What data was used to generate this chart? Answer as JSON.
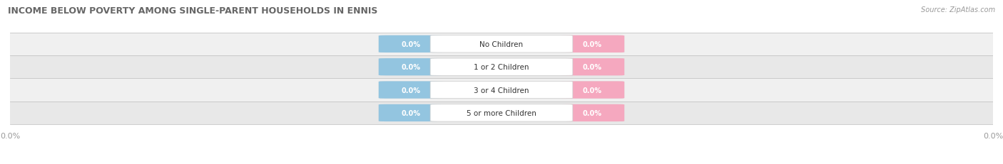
{
  "title": "INCOME BELOW POVERTY AMONG SINGLE-PARENT HOUSEHOLDS IN ENNIS",
  "source": "Source: ZipAtlas.com",
  "categories": [
    "No Children",
    "1 or 2 Children",
    "3 or 4 Children",
    "5 or more Children"
  ],
  "father_values": [
    0.0,
    0.0,
    0.0,
    0.0
  ],
  "mother_values": [
    0.0,
    0.0,
    0.0,
    0.0
  ],
  "father_color": "#93C5E0",
  "mother_color": "#F5A8BF",
  "row_bg_even": "#F0F0F0",
  "row_bg_odd": "#E8E8E8",
  "title_color": "#666666",
  "label_color": "#333333",
  "value_text_color": "#FFFFFF",
  "axis_label_color": "#999999",
  "figsize": [
    14.06,
    2.32
  ],
  "dpi": 100
}
